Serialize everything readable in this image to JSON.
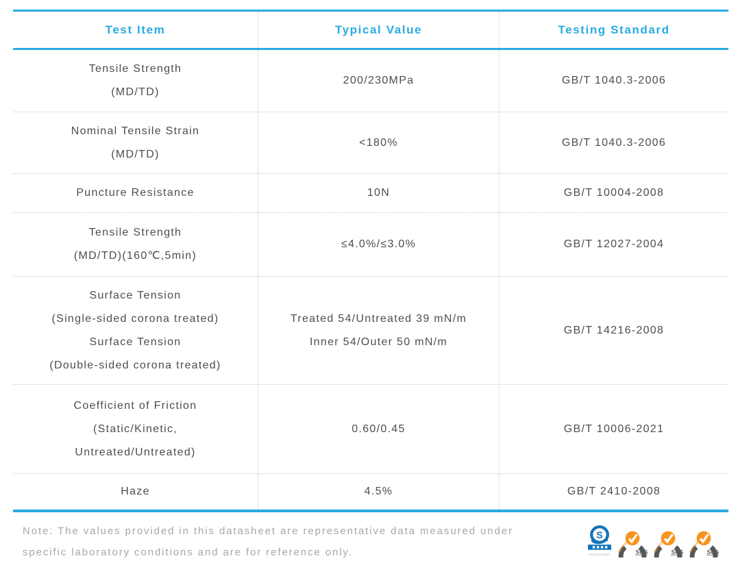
{
  "table": {
    "headers": [
      "Test Item",
      "Typical Value",
      "Testing Standard"
    ],
    "rows": [
      {
        "item": [
          "Tensile Strength",
          "(MD/TD)"
        ],
        "value": [
          "200/230MPa"
        ],
        "standard": "GB/T 1040.3-2006",
        "height": 90
      },
      {
        "item": [
          "Nominal Tensile Strain",
          "(MD/TD)"
        ],
        "value": [
          "<180%"
        ],
        "standard": "GB/T 1040.3-2006",
        "height": 90
      },
      {
        "item": [
          "Puncture Resistance"
        ],
        "value": [
          "10N"
        ],
        "standard": "GB/T 10004-2008",
        "height": 57
      },
      {
        "item": [
          "Tensile Strength",
          "(MD/TD)(160℃,5min)"
        ],
        "value": [
          "≤4.0%/≤3.0%"
        ],
        "standard": "GB/T 12027-2004",
        "height": 93
      },
      {
        "item": [
          "Surface Tension",
          "(Single-sided corona treated)",
          "Surface Tension",
          "(Double-sided corona treated)"
        ],
        "value": [
          "Treated 54/Untreated 39 mN/m",
          "Inner 54/Outer 50 mN/m"
        ],
        "standard": "GB/T 14216-2008",
        "height": 158
      },
      {
        "item": [
          "Coefficient of Friction",
          "(Static/Kinetic,",
          "Untreated/Untreated)"
        ],
        "value": [
          "0.60/0.45"
        ],
        "standard": "GB/T 10006-2021",
        "height": 130
      },
      {
        "item": [
          "Haze"
        ],
        "value": [
          "4.5%"
        ],
        "standard": "GB/T 2410-2008",
        "height": 53
      }
    ]
  },
  "note": "Note: The values provided in this datasheet are representative data measured under specific laboratory conditions and are for reference only.",
  "logos": {
    "qs": {
      "band_label": "生产许可",
      "code": "XK16-204-00027"
    },
    "sgs": [
      {
        "iso": "ISO 9001",
        "arc_text": "SYSTEM CERTIFICATION",
        "brand": "SGS"
      },
      {
        "iso": "ISO 22000",
        "arc_text": "SYSTEM CERTIFICATION",
        "brand": "SGS"
      },
      {
        "iso": "ISO 14001",
        "arc_text": "SYSTEM CERTIFICATION",
        "brand": "SGS"
      }
    ]
  },
  "colors": {
    "accent": "#29abe2",
    "body_text": "#4d4d4d",
    "note_text": "#a5a7aa",
    "dotted_line": "#cccccc",
    "sgs_orange": "#f7941e",
    "sgs_gray": "#55565a",
    "qs_blue": "#1272b8"
  }
}
